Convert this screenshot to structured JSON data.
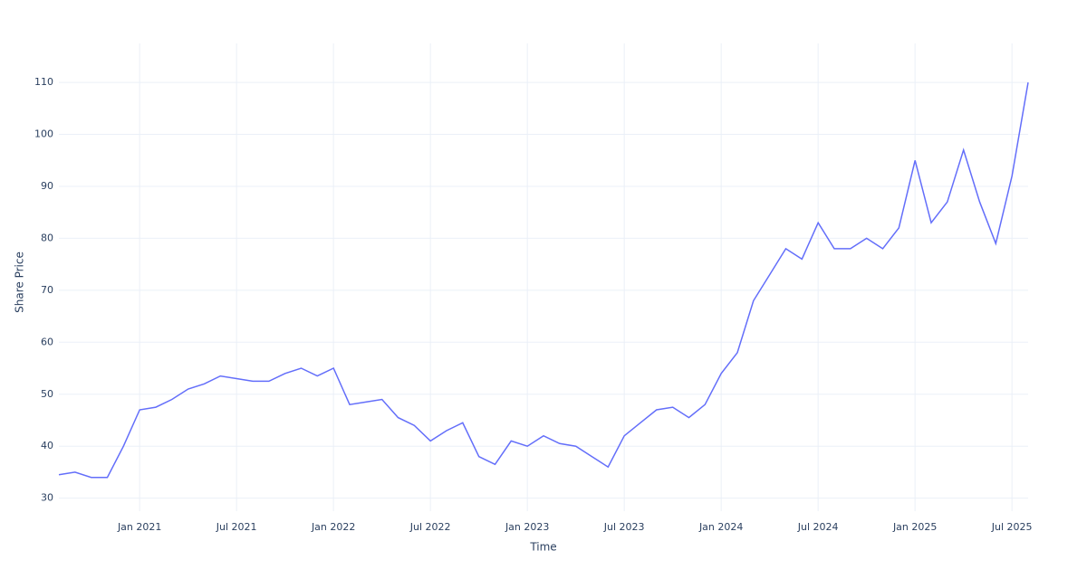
{
  "chart_data": {
    "type": "line",
    "x_label": "Time",
    "y_label": "Share Price",
    "x": [
      "2020-08",
      "2020-09",
      "2020-10",
      "2020-11",
      "2020-12",
      "2021-01",
      "2021-02",
      "2021-03",
      "2021-04",
      "2021-05",
      "2021-06",
      "2021-07",
      "2021-08",
      "2021-09",
      "2021-10",
      "2021-11",
      "2021-12",
      "2022-01",
      "2022-02",
      "2022-03",
      "2022-04",
      "2022-05",
      "2022-06",
      "2022-07",
      "2022-08",
      "2022-09",
      "2022-10",
      "2022-11",
      "2022-12",
      "2023-01",
      "2023-02",
      "2023-03",
      "2023-04",
      "2023-05",
      "2023-06",
      "2023-07",
      "2023-08",
      "2023-09",
      "2023-10",
      "2023-11",
      "2023-12",
      "2024-01",
      "2024-02",
      "2024-03",
      "2024-04",
      "2024-05",
      "2024-06",
      "2024-07",
      "2024-08",
      "2024-09",
      "2024-10",
      "2024-11",
      "2024-12",
      "2025-01",
      "2025-02",
      "2025-03",
      "2025-04",
      "2025-05",
      "2025-06",
      "2025-07",
      "2025-08"
    ],
    "series": [
      {
        "name": "Share Price",
        "color": "#636efa",
        "values": [
          34.5,
          35,
          34,
          34,
          40,
          47,
          47.5,
          49,
          51,
          52,
          53.5,
          53,
          52.5,
          52.5,
          54,
          55,
          53.5,
          55,
          48,
          48.5,
          49,
          45.5,
          44,
          41,
          43,
          44.5,
          38,
          36.5,
          41,
          40,
          42,
          40.5,
          40,
          38,
          36,
          42,
          44.5,
          47,
          47.5,
          45.5,
          48,
          54,
          58,
          68,
          73,
          78,
          76,
          83,
          78,
          78,
          80,
          78,
          82,
          95,
          83,
          87,
          97,
          87,
          79,
          92,
          110
        ]
      }
    ],
    "xlim": [
      "2020-08",
      "2025-08"
    ],
    "xticks": [
      {
        "value": "2021-01",
        "label": "Jan 2021"
      },
      {
        "value": "2021-07",
        "label": "Jul 2021"
      },
      {
        "value": "2022-01",
        "label": "Jan 2022"
      },
      {
        "value": "2022-07",
        "label": "Jul 2022"
      },
      {
        "value": "2023-01",
        "label": "Jan 2023"
      },
      {
        "value": "2023-07",
        "label": "Jul 2023"
      },
      {
        "value": "2024-01",
        "label": "Jan 2024"
      },
      {
        "value": "2024-07",
        "label": "Jul 2024"
      },
      {
        "value": "2025-01",
        "label": "Jan 2025"
      },
      {
        "value": "2025-07",
        "label": "Jul 2025"
      }
    ],
    "ylim": [
      27.5,
      117.5
    ],
    "yticks": [
      30,
      40,
      50,
      60,
      70,
      80,
      90,
      100,
      110
    ],
    "grid": true
  }
}
